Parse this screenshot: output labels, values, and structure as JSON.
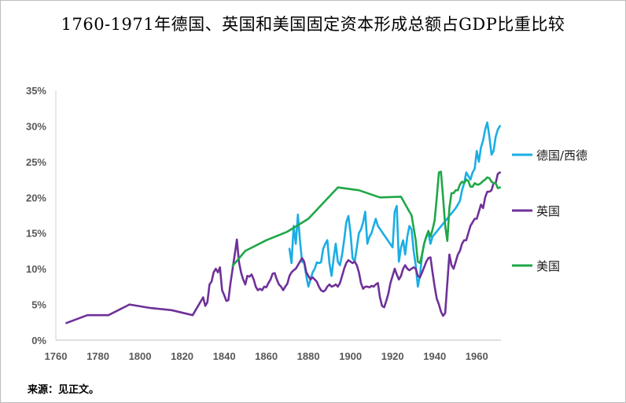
{
  "title": "1760-1971年德国、英国和美国固定资本形成总额占GDP比重比较",
  "source": "来源：见正文。",
  "chart_data": {
    "type": "line",
    "title": "1760-1971年德国、英国和美国固定资本形成总额占GDP比重比较",
    "xlim": [
      1760,
      1970
    ],
    "ylim": [
      0,
      35
    ],
    "x_ticks": [
      1760,
      1780,
      1800,
      1820,
      1840,
      1860,
      1880,
      1900,
      1920,
      1940,
      1960
    ],
    "y_ticks": [
      "0%",
      "5%",
      "10%",
      "15%",
      "20%",
      "25%",
      "30%",
      "35%"
    ],
    "y_tick_values": [
      0,
      5,
      10,
      15,
      20,
      25,
      30,
      35
    ],
    "grid": false,
    "legend_position": "right",
    "series": [
      {
        "name": "德国/西德",
        "color": "#1aaee5",
        "points": [
          [
            1871,
            12.8
          ],
          [
            1872,
            10.8
          ],
          [
            1873,
            16.0
          ],
          [
            1874,
            13.5
          ],
          [
            1875,
            17.6
          ],
          [
            1876,
            14.0
          ],
          [
            1877,
            11.0
          ],
          [
            1878,
            10.8
          ],
          [
            1879,
            9.0
          ],
          [
            1880,
            7.5
          ],
          [
            1881,
            8.5
          ],
          [
            1882,
            9.5
          ],
          [
            1883,
            10.0
          ],
          [
            1884,
            10.9
          ],
          [
            1885,
            10.8
          ],
          [
            1886,
            10.9
          ],
          [
            1887,
            12.8
          ],
          [
            1888,
            13.5
          ],
          [
            1889,
            14.0
          ],
          [
            1890,
            10.8
          ],
          [
            1891,
            9.0
          ],
          [
            1892,
            11.5
          ],
          [
            1893,
            13.5
          ],
          [
            1894,
            11.0
          ],
          [
            1895,
            10.5
          ],
          [
            1896,
            12.0
          ],
          [
            1897,
            14.0
          ],
          [
            1898,
            16.5
          ],
          [
            1899,
            17.4
          ],
          [
            1900,
            15.0
          ],
          [
            1901,
            11.5
          ],
          [
            1902,
            11.0
          ],
          [
            1903,
            13.0
          ],
          [
            1904,
            15.0
          ],
          [
            1905,
            15.5
          ],
          [
            1906,
            16.5
          ],
          [
            1907,
            18.0
          ],
          [
            1908,
            13.5
          ],
          [
            1909,
            14.5
          ],
          [
            1910,
            15.0
          ],
          [
            1911,
            16.0
          ],
          [
            1912,
            17.0
          ],
          [
            1913,
            16.0
          ],
          [
            1920,
            13.0
          ],
          [
            1921,
            18.0
          ],
          [
            1922,
            18.8
          ],
          [
            1923,
            11.0
          ],
          [
            1924,
            13.0
          ],
          [
            1925,
            14.0
          ],
          [
            1926,
            12.0
          ],
          [
            1927,
            14.5
          ],
          [
            1928,
            16.0
          ],
          [
            1929,
            15.5
          ],
          [
            1930,
            12.5
          ],
          [
            1931,
            10.5
          ],
          [
            1932,
            7.5
          ],
          [
            1933,
            9.0
          ],
          [
            1934,
            12.0
          ],
          [
            1935,
            13.5
          ],
          [
            1936,
            14.5
          ],
          [
            1937,
            15.0
          ],
          [
            1938,
            13.5
          ],
          [
            1939,
            14.5
          ],
          [
            1950,
            18.5
          ],
          [
            1951,
            19.0
          ],
          [
            1952,
            19.5
          ],
          [
            1953,
            21.0
          ],
          [
            1954,
            22.0
          ],
          [
            1955,
            23.5
          ],
          [
            1956,
            23.0
          ],
          [
            1957,
            22.5
          ],
          [
            1958,
            23.5
          ],
          [
            1959,
            24.0
          ],
          [
            1960,
            26.5
          ],
          [
            1961,
            25.0
          ],
          [
            1962,
            27.0
          ],
          [
            1963,
            28.0
          ],
          [
            1964,
            29.5
          ],
          [
            1965,
            30.5
          ],
          [
            1966,
            28.5
          ],
          [
            1967,
            26.0
          ],
          [
            1968,
            26.5
          ],
          [
            1969,
            28.5
          ],
          [
            1970,
            29.5
          ],
          [
            1971,
            30.0
          ]
        ]
      },
      {
        "name": "英国",
        "color": "#6f3198",
        "points": [
          [
            1765,
            2.4
          ],
          [
            1775,
            3.5
          ],
          [
            1785,
            3.5
          ],
          [
            1795,
            5.0
          ],
          [
            1805,
            4.5
          ],
          [
            1815,
            4.2
          ],
          [
            1825,
            3.5
          ],
          [
            1830,
            6.0
          ],
          [
            1831,
            4.8
          ],
          [
            1832,
            5.3
          ],
          [
            1833,
            7.8
          ],
          [
            1834,
            8.2
          ],
          [
            1835,
            9.5
          ],
          [
            1836,
            10.0
          ],
          [
            1837,
            9.5
          ],
          [
            1838,
            10.2
          ],
          [
            1839,
            7.0
          ],
          [
            1840,
            6.3
          ],
          [
            1841,
            5.5
          ],
          [
            1842,
            5.6
          ],
          [
            1843,
            8.0
          ],
          [
            1844,
            10.0
          ],
          [
            1845,
            12.0
          ],
          [
            1846,
            14.1
          ],
          [
            1847,
            11.0
          ],
          [
            1848,
            9.5
          ],
          [
            1849,
            8.5
          ],
          [
            1850,
            7.8
          ],
          [
            1851,
            9.0
          ],
          [
            1852,
            8.9
          ],
          [
            1853,
            9.2
          ],
          [
            1854,
            8.5
          ],
          [
            1855,
            7.5
          ],
          [
            1856,
            7.0
          ],
          [
            1857,
            7.2
          ],
          [
            1858,
            7.0
          ],
          [
            1859,
            7.5
          ],
          [
            1860,
            7.4
          ],
          [
            1861,
            8.0
          ],
          [
            1862,
            8.5
          ],
          [
            1863,
            9.3
          ],
          [
            1864,
            9.4
          ],
          [
            1865,
            8.5
          ],
          [
            1866,
            7.8
          ],
          [
            1867,
            7.5
          ],
          [
            1868,
            7.0
          ],
          [
            1869,
            7.5
          ],
          [
            1870,
            7.9
          ],
          [
            1871,
            9.0
          ],
          [
            1872,
            9.5
          ],
          [
            1873,
            9.8
          ],
          [
            1874,
            10.0
          ],
          [
            1875,
            10.5
          ],
          [
            1876,
            11.0
          ],
          [
            1877,
            11.5
          ],
          [
            1878,
            11.0
          ],
          [
            1879,
            9.5
          ],
          [
            1880,
            9.0
          ],
          [
            1881,
            8.5
          ],
          [
            1882,
            8.8
          ],
          [
            1883,
            8.5
          ],
          [
            1884,
            8.2
          ],
          [
            1885,
            7.5
          ],
          [
            1886,
            7.0
          ],
          [
            1887,
            6.8
          ],
          [
            1888,
            7.0
          ],
          [
            1889,
            7.5
          ],
          [
            1890,
            7.8
          ],
          [
            1891,
            7.5
          ],
          [
            1892,
            7.6
          ],
          [
            1893,
            7.8
          ],
          [
            1894,
            7.5
          ],
          [
            1895,
            8.0
          ],
          [
            1896,
            9.0
          ],
          [
            1897,
            10.0
          ],
          [
            1898,
            10.8
          ],
          [
            1899,
            11.2
          ],
          [
            1900,
            11.0
          ],
          [
            1901,
            10.8
          ],
          [
            1902,
            11.0
          ],
          [
            1903,
            10.5
          ],
          [
            1904,
            9.5
          ],
          [
            1905,
            8.0
          ],
          [
            1906,
            7.2
          ],
          [
            1907,
            7.5
          ],
          [
            1908,
            7.5
          ],
          [
            1909,
            7.4
          ],
          [
            1910,
            7.6
          ],
          [
            1911,
            7.5
          ],
          [
            1912,
            7.8
          ],
          [
            1913,
            8.0
          ],
          [
            1914,
            6.0
          ],
          [
            1915,
            4.8
          ],
          [
            1916,
            4.6
          ],
          [
            1917,
            5.5
          ],
          [
            1918,
            6.5
          ],
          [
            1919,
            8.0
          ],
          [
            1920,
            9.0
          ],
          [
            1921,
            10.0
          ],
          [
            1922,
            9.2
          ],
          [
            1923,
            8.5
          ],
          [
            1924,
            9.0
          ],
          [
            1925,
            10.0
          ],
          [
            1926,
            10.5
          ],
          [
            1927,
            10.0
          ],
          [
            1928,
            9.8
          ],
          [
            1929,
            10.0
          ],
          [
            1930,
            10.2
          ],
          [
            1931,
            10.0
          ],
          [
            1932,
            9.0
          ],
          [
            1933,
            8.8
          ],
          [
            1934,
            9.5
          ],
          [
            1935,
            10.2
          ],
          [
            1936,
            11.0
          ],
          [
            1937,
            11.5
          ],
          [
            1938,
            11.6
          ],
          [
            1939,
            9.5
          ],
          [
            1940,
            7.5
          ],
          [
            1941,
            5.8
          ],
          [
            1942,
            5.0
          ],
          [
            1943,
            4.0
          ],
          [
            1944,
            3.4
          ],
          [
            1945,
            3.8
          ],
          [
            1946,
            8.0
          ],
          [
            1947,
            12.0
          ],
          [
            1948,
            10.5
          ],
          [
            1949,
            10.0
          ],
          [
            1950,
            11.0
          ],
          [
            1951,
            12.0
          ],
          [
            1952,
            12.5
          ],
          [
            1953,
            13.5
          ],
          [
            1954,
            14.0
          ],
          [
            1955,
            14.0
          ],
          [
            1956,
            15.0
          ],
          [
            1957,
            16.0
          ],
          [
            1958,
            16.5
          ],
          [
            1959,
            17.0
          ],
          [
            1960,
            17.0
          ],
          [
            1961,
            18.0
          ],
          [
            1962,
            19.0
          ],
          [
            1963,
            18.5
          ],
          [
            1964,
            20.0
          ],
          [
            1965,
            20.8
          ],
          [
            1966,
            20.8
          ],
          [
            1967,
            21.0
          ],
          [
            1968,
            22.0
          ],
          [
            1969,
            22.0
          ],
          [
            1970,
            23.3
          ],
          [
            1971,
            23.5
          ]
        ]
      },
      {
        "name": "美国",
        "color": "#1fa748",
        "points": [
          [
            1844,
            10.4
          ],
          [
            1850,
            12.5
          ],
          [
            1860,
            14.0
          ],
          [
            1870,
            15.2
          ],
          [
            1880,
            17.0
          ],
          [
            1894,
            21.4
          ],
          [
            1904,
            21.0
          ],
          [
            1914,
            20.0
          ],
          [
            1924,
            20.1
          ],
          [
            1928,
            18.0
          ],
          [
            1929,
            17.5
          ],
          [
            1931,
            14.0
          ],
          [
            1932,
            11.0
          ],
          [
            1933,
            10.8
          ],
          [
            1934,
            12.0
          ],
          [
            1935,
            13.5
          ],
          [
            1936,
            14.5
          ],
          [
            1937,
            15.3
          ],
          [
            1938,
            14.5
          ],
          [
            1939,
            15.5
          ],
          [
            1940,
            16.8
          ],
          [
            1941,
            20.0
          ],
          [
            1942,
            23.5
          ],
          [
            1943,
            23.6
          ],
          [
            1944,
            20.0
          ],
          [
            1945,
            16.0
          ],
          [
            1946,
            13.9
          ],
          [
            1947,
            18.5
          ],
          [
            1948,
            20.6
          ],
          [
            1949,
            20.6
          ],
          [
            1950,
            21.0
          ],
          [
            1951,
            21.0
          ],
          [
            1952,
            21.8
          ],
          [
            1953,
            22.2
          ],
          [
            1954,
            22.0
          ],
          [
            1955,
            22.5
          ],
          [
            1956,
            22.3
          ],
          [
            1957,
            21.5
          ],
          [
            1958,
            21.5
          ],
          [
            1959,
            22.0
          ],
          [
            1960,
            21.8
          ],
          [
            1961,
            21.8
          ],
          [
            1962,
            22.0
          ],
          [
            1963,
            22.3
          ],
          [
            1964,
            22.5
          ],
          [
            1965,
            22.8
          ],
          [
            1966,
            22.7
          ],
          [
            1967,
            22.2
          ],
          [
            1968,
            22.0
          ],
          [
            1969,
            22.0
          ],
          [
            1970,
            21.3
          ],
          [
            1971,
            21.4
          ]
        ]
      }
    ]
  }
}
